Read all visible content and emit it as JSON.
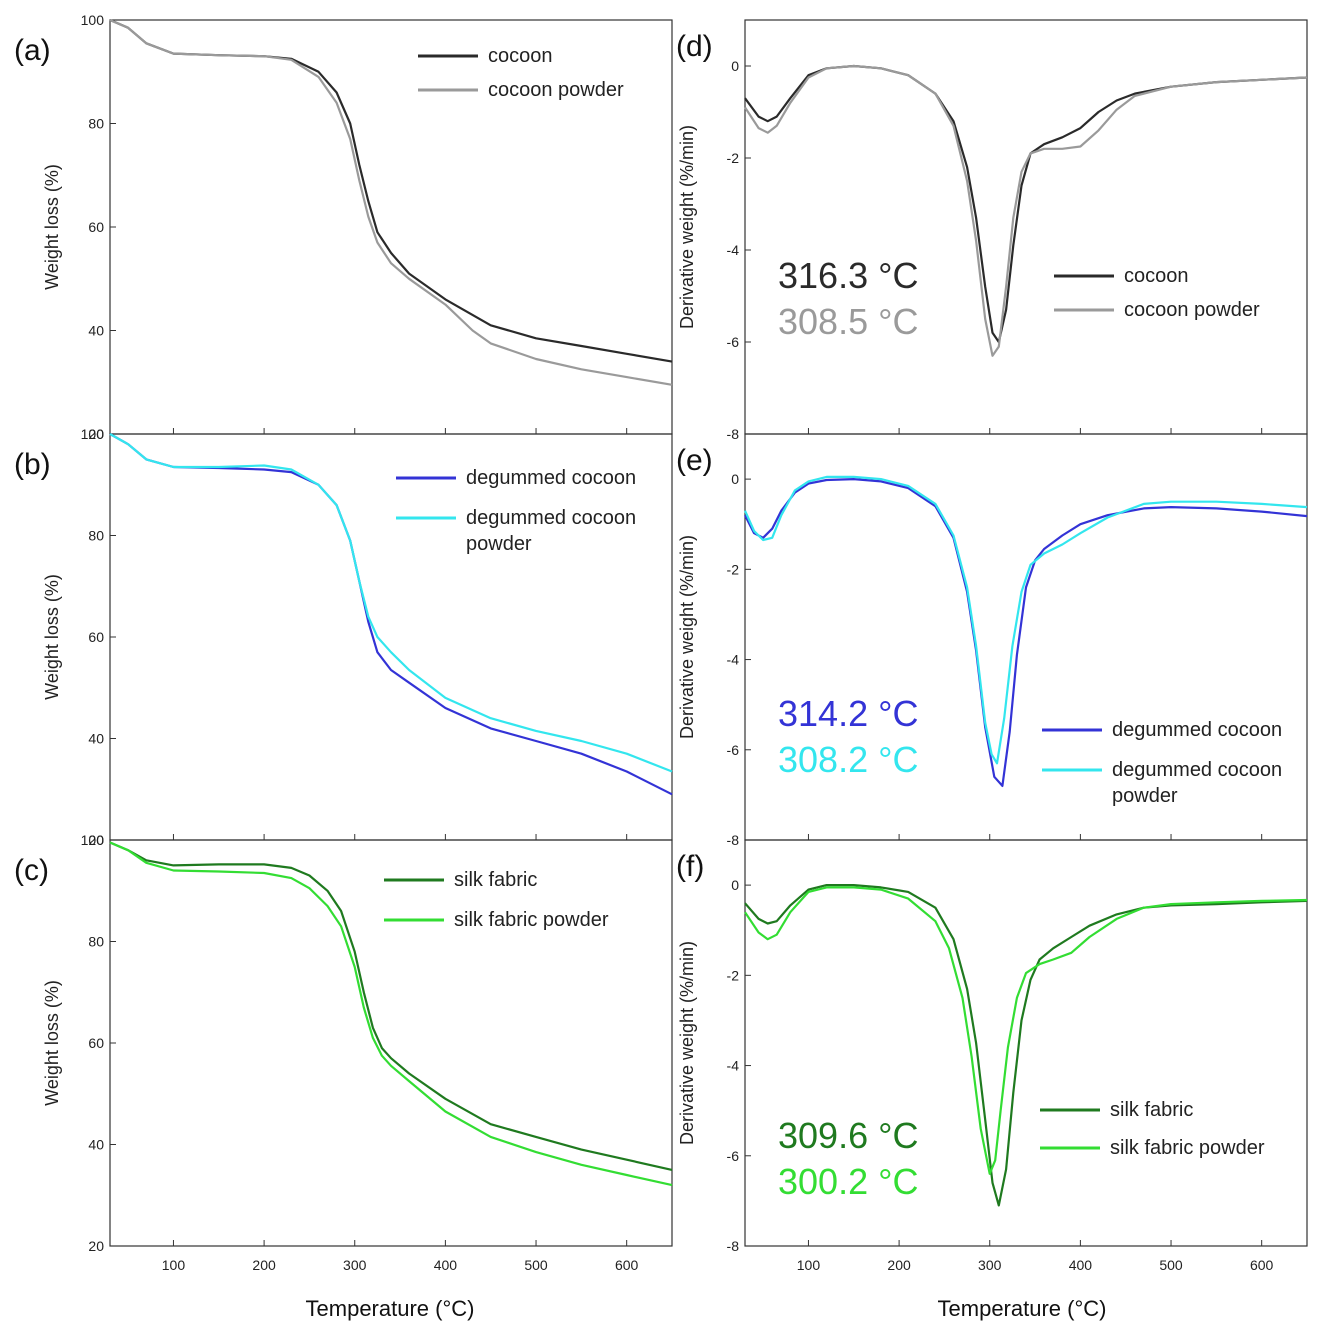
{
  "colors": {
    "cocoon": "#2a2a2a",
    "cocoon_powder": "#9a9a9a",
    "degummed_cocoon": "#3333d6",
    "degummed_cocoon_powder": "#33e6ee",
    "silk_fabric": "#1f7a1f",
    "silk_fabric_powder": "#33dd33"
  },
  "x_axis": {
    "title": "Temperature (°C)",
    "ticks": [
      100,
      200,
      300,
      400,
      500,
      600
    ],
    "xlim": [
      30,
      650
    ]
  },
  "chart_data": [
    {
      "panel": "(a)",
      "type": "line",
      "ylabel": "Weight loss (%)",
      "ylim": [
        20,
        100
      ],
      "yticks": [
        20,
        40,
        60,
        80,
        100
      ],
      "legend_placement": "top-right",
      "series": [
        {
          "name": "cocoon",
          "color_key": "cocoon",
          "x": [
            30,
            50,
            70,
            100,
            150,
            200,
            230,
            260,
            280,
            295,
            305,
            315,
            325,
            340,
            360,
            400,
            450,
            500,
            550,
            600,
            650
          ],
          "y": [
            100,
            98.5,
            95.5,
            93.5,
            93.2,
            93,
            92.5,
            90,
            86,
            80,
            72,
            65,
            59,
            55,
            51,
            46,
            41,
            38.5,
            37,
            35.5,
            34
          ]
        },
        {
          "name": "cocoon powder",
          "color_key": "cocoon_powder",
          "x": [
            30,
            50,
            70,
            100,
            150,
            200,
            230,
            260,
            280,
            295,
            305,
            315,
            325,
            340,
            360,
            400,
            430,
            450,
            500,
            550,
            600,
            650
          ],
          "y": [
            100,
            98.5,
            95.5,
            93.5,
            93.2,
            93,
            92.3,
            89,
            84,
            77,
            69,
            62,
            57,
            53,
            50,
            45,
            40,
            37.5,
            34.5,
            32.5,
            31,
            29.5
          ]
        }
      ]
    },
    {
      "panel": "(b)",
      "type": "line",
      "ylabel": "Weight loss (%)",
      "ylim": [
        20,
        100
      ],
      "yticks": [
        20,
        40,
        60,
        80,
        100
      ],
      "legend_placement": "top-right",
      "series": [
        {
          "name": "degummed cocoon",
          "color_key": "degummed_cocoon",
          "x": [
            30,
            50,
            70,
            100,
            150,
            200,
            230,
            260,
            280,
            295,
            305,
            315,
            325,
            340,
            360,
            400,
            450,
            500,
            550,
            600,
            650
          ],
          "y": [
            100,
            98,
            95,
            93.5,
            93.3,
            93,
            92.5,
            90,
            86,
            79,
            71,
            63,
            57,
            53.5,
            51,
            46,
            42,
            39.5,
            37,
            33.5,
            29
          ]
        },
        {
          "name": "degummed cocoon powder",
          "color_key": "degummed_cocoon_powder",
          "x": [
            30,
            50,
            70,
            100,
            150,
            200,
            230,
            260,
            280,
            295,
            305,
            315,
            325,
            340,
            360,
            400,
            450,
            500,
            550,
            600,
            650
          ],
          "y": [
            100,
            98,
            95,
            93.5,
            93.5,
            93.8,
            93,
            90,
            86,
            79,
            71,
            64,
            60,
            57,
            53.5,
            48,
            44,
            41.5,
            39.5,
            37,
            33.5
          ]
        }
      ]
    },
    {
      "panel": "(c)",
      "type": "line",
      "ylabel": "Weight loss (%)",
      "ylim": [
        20,
        100
      ],
      "yticks": [
        20,
        40,
        60,
        80,
        100
      ],
      "legend_placement": "top-right",
      "series": [
        {
          "name": "silk fabric",
          "color_key": "silk_fabric",
          "x": [
            30,
            50,
            70,
            100,
            150,
            200,
            230,
            250,
            270,
            285,
            300,
            310,
            320,
            330,
            340,
            360,
            400,
            450,
            500,
            550,
            600,
            650
          ],
          "y": [
            99.5,
            98,
            96,
            95,
            95.2,
            95.2,
            94.5,
            93,
            90,
            86,
            78,
            70,
            63,
            59,
            57,
            54,
            49,
            44,
            41.5,
            39,
            37,
            35
          ]
        },
        {
          "name": "silk fabric powder",
          "color_key": "silk_fabric_powder",
          "x": [
            30,
            50,
            70,
            100,
            150,
            200,
            230,
            250,
            270,
            285,
            300,
            310,
            320,
            330,
            340,
            360,
            400,
            450,
            500,
            550,
            600,
            650
          ],
          "y": [
            99.5,
            98,
            95.5,
            94,
            93.8,
            93.5,
            92.5,
            90.5,
            87,
            83,
            75,
            67,
            61,
            57.5,
            55.5,
            52.5,
            46.5,
            41.5,
            38.5,
            36,
            34,
            32
          ]
        }
      ]
    },
    {
      "panel": "(d)",
      "type": "line",
      "ylabel": "Derivative weight (%/min)",
      "ylim": [
        -8,
        1
      ],
      "yticks": [
        -8,
        -6,
        -4,
        -2,
        0
      ],
      "legend_placement": "center-right",
      "annotations": [
        {
          "text": "316.3 °C",
          "color_key": "cocoon"
        },
        {
          "text": "308.5 °C",
          "color_key": "cocoon_powder"
        }
      ],
      "series": [
        {
          "name": "cocoon",
          "color_key": "cocoon",
          "x": [
            30,
            45,
            55,
            65,
            80,
            100,
            120,
            150,
            180,
            210,
            240,
            260,
            275,
            285,
            295,
            303,
            310,
            318,
            326,
            335,
            345,
            360,
            380,
            400,
            420,
            440,
            460,
            500,
            550,
            600,
            650
          ],
          "y": [
            -0.7,
            -1.1,
            -1.2,
            -1.1,
            -0.7,
            -0.2,
            -0.05,
            0,
            -0.05,
            -0.2,
            -0.6,
            -1.2,
            -2.2,
            -3.3,
            -4.8,
            -5.8,
            -6,
            -5.3,
            -3.9,
            -2.6,
            -1.9,
            -1.7,
            -1.55,
            -1.35,
            -1,
            -0.75,
            -0.6,
            -0.45,
            -0.35,
            -0.3,
            -0.25
          ]
        },
        {
          "name": "cocoon powder",
          "color_key": "cocoon_powder",
          "x": [
            30,
            45,
            55,
            65,
            80,
            100,
            120,
            150,
            180,
            210,
            240,
            260,
            275,
            285,
            295,
            303,
            310,
            318,
            326,
            335,
            345,
            360,
            380,
            400,
            420,
            440,
            460,
            500,
            550,
            600,
            650
          ],
          "y": [
            -0.9,
            -1.35,
            -1.45,
            -1.3,
            -0.8,
            -0.25,
            -0.05,
            0,
            -0.05,
            -0.2,
            -0.6,
            -1.3,
            -2.5,
            -3.8,
            -5.5,
            -6.3,
            -6.1,
            -4.8,
            -3.3,
            -2.3,
            -1.9,
            -1.8,
            -1.8,
            -1.75,
            -1.4,
            -0.95,
            -0.65,
            -0.45,
            -0.35,
            -0.3,
            -0.25
          ]
        }
      ]
    },
    {
      "panel": "(e)",
      "type": "line",
      "ylabel": "Derivative weight (%/min)",
      "ylim": [
        -8,
        1
      ],
      "yticks": [
        -8,
        -6,
        -4,
        -2,
        0
      ],
      "legend_placement": "bottom-right",
      "annotations": [
        {
          "text": "314.2 °C",
          "color_key": "degummed_cocoon"
        },
        {
          "text": "308.2 °C",
          "color_key": "degummed_cocoon_powder"
        }
      ],
      "series": [
        {
          "name": "degummed cocoon",
          "color_key": "degummed_cocoon",
          "x": [
            30,
            40,
            50,
            60,
            70,
            85,
            100,
            120,
            150,
            180,
            210,
            240,
            260,
            275,
            285,
            295,
            305,
            314,
            322,
            330,
            340,
            350,
            360,
            380,
            400,
            430,
            470,
            500,
            550,
            600,
            650
          ],
          "y": [
            -0.8,
            -1.2,
            -1.3,
            -1.1,
            -0.7,
            -0.3,
            -0.1,
            -0.02,
            0,
            -0.05,
            -0.2,
            -0.6,
            -1.3,
            -2.5,
            -3.8,
            -5.5,
            -6.6,
            -6.8,
            -5.6,
            -3.9,
            -2.4,
            -1.8,
            -1.55,
            -1.25,
            -1,
            -0.8,
            -0.65,
            -0.62,
            -0.65,
            -0.72,
            -0.82
          ]
        },
        {
          "name": "degummed cocoon powder",
          "color_key": "degummed_cocoon_powder",
          "x": [
            30,
            40,
            50,
            60,
            70,
            85,
            100,
            120,
            150,
            180,
            210,
            240,
            260,
            275,
            285,
            295,
            302,
            308,
            316,
            325,
            335,
            345,
            360,
            380,
            400,
            430,
            470,
            500,
            550,
            600,
            650
          ],
          "y": [
            -0.7,
            -1.15,
            -1.35,
            -1.3,
            -0.8,
            -0.25,
            -0.05,
            0.05,
            0.05,
            0,
            -0.15,
            -0.55,
            -1.25,
            -2.4,
            -3.7,
            -5.4,
            -6.1,
            -6.3,
            -5.3,
            -3.7,
            -2.5,
            -1.9,
            -1.65,
            -1.45,
            -1.2,
            -0.85,
            -0.55,
            -0.5,
            -0.5,
            -0.55,
            -0.62
          ]
        }
      ]
    },
    {
      "panel": "(f)",
      "type": "line",
      "ylabel": "Derivative weight (%/min)",
      "ylim": [
        -8,
        1
      ],
      "yticks": [
        -8,
        -6,
        -4,
        -2,
        0
      ],
      "legend_placement": "bottom-right",
      "annotations": [
        {
          "text": "309.6 °C",
          "color_key": "silk_fabric"
        },
        {
          "text": "300.2 °C",
          "color_key": "silk_fabric_powder"
        }
      ],
      "series": [
        {
          "name": "silk fabric",
          "color_key": "silk_fabric",
          "x": [
            30,
            45,
            55,
            65,
            80,
            100,
            120,
            150,
            180,
            210,
            240,
            260,
            275,
            285,
            295,
            303,
            310,
            318,
            326,
            335,
            345,
            355,
            370,
            390,
            410,
            440,
            470,
            500,
            550,
            600,
            650
          ],
          "y": [
            -0.4,
            -0.75,
            -0.85,
            -0.8,
            -0.45,
            -0.1,
            0,
            0,
            -0.05,
            -0.15,
            -0.5,
            -1.2,
            -2.3,
            -3.5,
            -5.2,
            -6.6,
            -7.1,
            -6.3,
            -4.6,
            -3,
            -2.1,
            -1.65,
            -1.4,
            -1.15,
            -0.9,
            -0.65,
            -0.5,
            -0.45,
            -0.42,
            -0.38,
            -0.35
          ]
        },
        {
          "name": "silk fabric powder",
          "color_key": "silk_fabric_powder",
          "x": [
            30,
            45,
            55,
            65,
            80,
            100,
            120,
            150,
            180,
            210,
            240,
            255,
            270,
            280,
            290,
            300,
            306,
            312,
            320,
            330,
            340,
            355,
            370,
            390,
            410,
            440,
            470,
            500,
            550,
            600,
            650
          ],
          "y": [
            -0.6,
            -1.05,
            -1.2,
            -1.1,
            -0.6,
            -0.15,
            -0.05,
            -0.05,
            -0.1,
            -0.3,
            -0.8,
            -1.4,
            -2.5,
            -3.8,
            -5.4,
            -6.4,
            -6.1,
            -5,
            -3.6,
            -2.5,
            -1.95,
            -1.75,
            -1.65,
            -1.5,
            -1.15,
            -0.75,
            -0.5,
            -0.42,
            -0.38,
            -0.35,
            -0.33
          ]
        }
      ]
    }
  ]
}
